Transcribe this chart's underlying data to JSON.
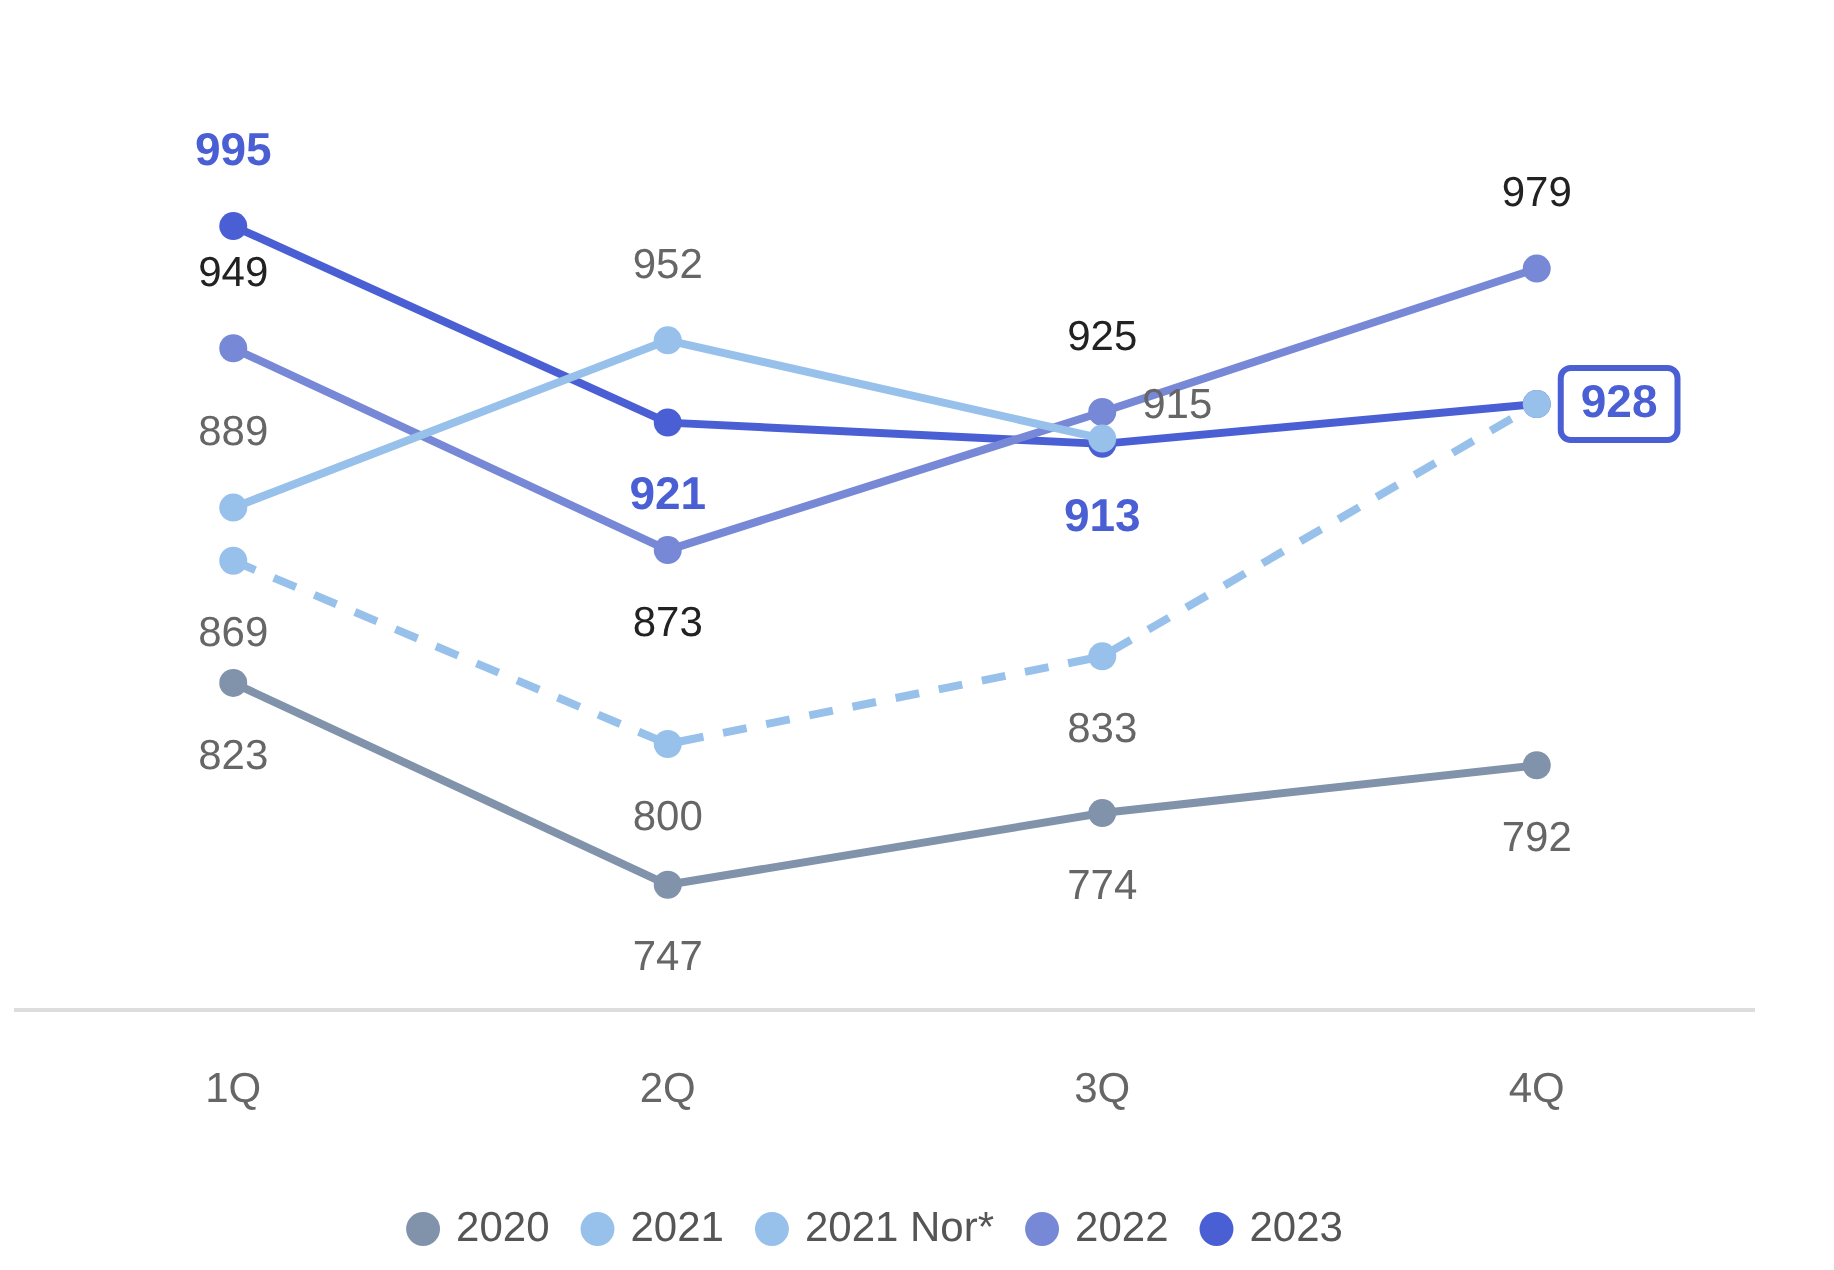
{
  "chart_data": {
    "type": "line",
    "categories": [
      "1Q",
      "2Q",
      "3Q",
      "4Q"
    ],
    "series": [
      {
        "name": "2020",
        "color": "#8093aa",
        "values": [
          823,
          747,
          774,
          792
        ],
        "value_labels": [
          "823",
          "747",
          "774",
          "792"
        ]
      },
      {
        "name": "2021",
        "color": "#97c1eb",
        "values": [
          889,
          952,
          915,
          null
        ],
        "value_labels": [
          "889",
          "952",
          "915",
          null
        ]
      },
      {
        "name": "2021 Nor*",
        "color": "#97c1eb",
        "line_style": "dashed",
        "values": [
          869,
          800,
          833,
          928
        ],
        "value_labels": [
          "869",
          "800",
          "833",
          null
        ]
      },
      {
        "name": "2022",
        "color": "#7788d6",
        "values": [
          949,
          873,
          925,
          979
        ],
        "value_labels": [
          "949",
          "873",
          "925",
          "979"
        ]
      },
      {
        "name": "2023",
        "color": "#4a5fd3",
        "values": [
          995,
          921,
          913,
          928
        ],
        "value_labels": [
          "995",
          "921",
          "913",
          "928"
        ]
      }
    ],
    "tick_labels": "x",
    "grid": false,
    "legend": "bottom",
    "marker": "circle"
  }
}
